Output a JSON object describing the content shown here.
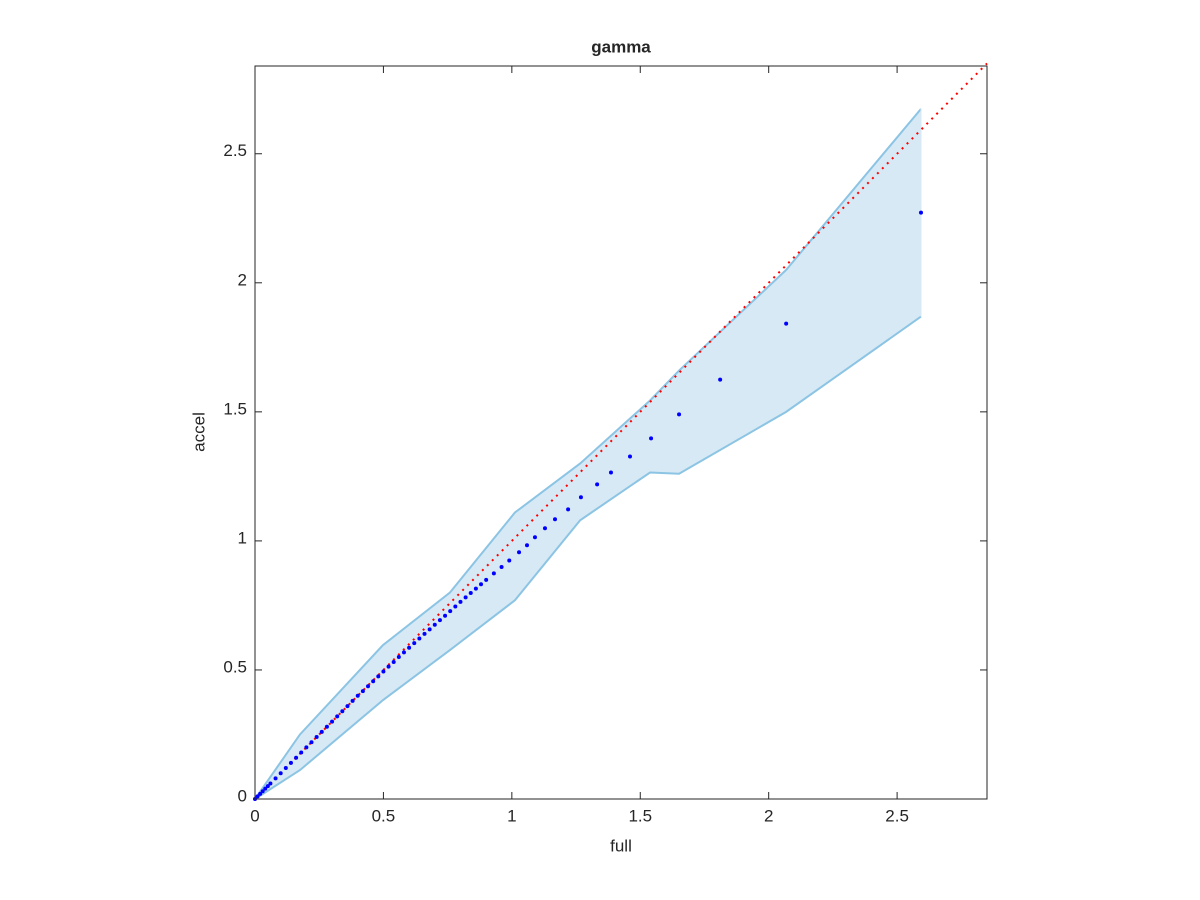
{
  "chart_data": {
    "type": "scatter",
    "title": "gamma",
    "x_label": "full",
    "y_label": "accel",
    "xlim": [
      0,
      2.85
    ],
    "ylim": [
      0,
      2.84
    ],
    "xticks": [
      0,
      0.5,
      1,
      1.5,
      2,
      2.5
    ],
    "yticks": [
      0,
      0.5,
      1,
      1.5,
      2,
      2.5
    ],
    "points": {
      "color": "#0000ff",
      "x": [
        0,
        0.01,
        0.02,
        0.03,
        0.04,
        0.05,
        0.06,
        0.08,
        0.1,
        0.12,
        0.14,
        0.16,
        0.18,
        0.2,
        0.22,
        0.24,
        0.26,
        0.28,
        0.3,
        0.32,
        0.34,
        0.36,
        0.38,
        0.4,
        0.42,
        0.44,
        0.46,
        0.48,
        0.5,
        0.52,
        0.54,
        0.56,
        0.58,
        0.6,
        0.62,
        0.64,
        0.66,
        0.68,
        0.7,
        0.72,
        0.74,
        0.76,
        0.78,
        0.8,
        0.82,
        0.84,
        0.86,
        0.88,
        0.9,
        0.93,
        0.96,
        0.99,
        1.028,
        1.059,
        1.09,
        1.129,
        1.168,
        1.219,
        1.269,
        1.332,
        1.386,
        1.46,
        1.542,
        1.651,
        1.811,
        2.068,
        2.593
      ],
      "values": [
        0,
        0.01,
        0.02,
        0.03,
        0.04,
        0.05,
        0.06,
        0.08,
        0.1,
        0.12,
        0.14,
        0.16,
        0.18,
        0.2,
        0.22,
        0.24,
        0.26,
        0.28,
        0.3,
        0.32,
        0.34,
        0.36,
        0.38,
        0.4,
        0.418,
        0.437,
        0.456,
        0.475,
        0.494,
        0.513,
        0.531,
        0.55,
        0.568,
        0.586,
        0.604,
        0.622,
        0.64,
        0.657,
        0.675,
        0.693,
        0.71,
        0.728,
        0.746,
        0.764,
        0.781,
        0.798,
        0.815,
        0.832,
        0.849,
        0.874,
        0.899,
        0.924,
        0.956,
        0.983,
        1.014,
        1.049,
        1.084,
        1.122,
        1.169,
        1.219,
        1.265,
        1.327,
        1.397,
        1.49,
        1.625,
        1.842,
        2.272
      ]
    },
    "band": {
      "color": "#8cc4e4",
      "fill": "#d6e9f5",
      "x": [
        0,
        0.175,
        0.498,
        0.759,
        1.012,
        1.266,
        1.538,
        1.651,
        2.068,
        2.593
      ],
      "upper": [
        0,
        0.25,
        0.596,
        0.8,
        1.11,
        1.3,
        1.544,
        1.66,
        2.05,
        2.674
      ],
      "lower": [
        0,
        0.112,
        0.383,
        0.577,
        0.77,
        1.08,
        1.265,
        1.26,
        1.5,
        1.869
      ]
    },
    "reference": {
      "color": "#ff0000",
      "x": [
        0,
        2.85
      ],
      "values": [
        0,
        2.85
      ]
    }
  }
}
